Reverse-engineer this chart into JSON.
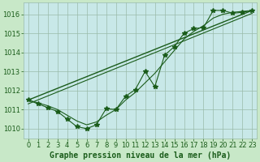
{
  "background_color": "#c8e8c8",
  "plot_bg_color": "#c8e8e8",
  "grid_color": "#99bbaa",
  "line_color": "#1a5c1a",
  "title": "Graphe pression niveau de la mer (hPa)",
  "tick_fontsize": 6,
  "title_fontsize": 7,
  "xlim": [
    -0.5,
    23.5
  ],
  "ylim": [
    1009.5,
    1016.6
  ],
  "yticks": [
    1010,
    1011,
    1012,
    1013,
    1014,
    1015,
    1016
  ],
  "xticks": [
    0,
    1,
    2,
    3,
    4,
    5,
    6,
    7,
    8,
    9,
    10,
    11,
    12,
    13,
    14,
    15,
    16,
    17,
    18,
    19,
    20,
    21,
    22,
    23
  ],
  "jagged_x": [
    0,
    1,
    2,
    3,
    4,
    5,
    6,
    7,
    8,
    9,
    10,
    11,
    12,
    13,
    14,
    15,
    16,
    17,
    18,
    19,
    20,
    21,
    22,
    23
  ],
  "jagged_y": [
    1011.5,
    1011.3,
    1011.1,
    1010.9,
    1010.5,
    1010.1,
    1010.0,
    1010.2,
    1011.05,
    1011.0,
    1011.7,
    1012.05,
    1013.0,
    1012.2,
    1013.85,
    1014.3,
    1015.0,
    1015.25,
    1015.3,
    1016.2,
    1016.2,
    1016.05,
    1016.1,
    1016.2
  ],
  "smooth_x": [
    0,
    1,
    2,
    3,
    4,
    5,
    6,
    7,
    8,
    9,
    10,
    11,
    12,
    13,
    14,
    15,
    16,
    17,
    18,
    19,
    20,
    21,
    22,
    23
  ],
  "smooth_y": [
    1011.5,
    1011.35,
    1011.2,
    1011.0,
    1010.7,
    1010.4,
    1010.2,
    1010.35,
    1010.7,
    1011.0,
    1011.5,
    1011.9,
    1012.4,
    1012.9,
    1013.5,
    1014.1,
    1014.7,
    1015.1,
    1015.4,
    1015.8,
    1016.0,
    1016.1,
    1016.15,
    1016.2
  ],
  "trend_x": [
    0,
    23
  ],
  "trend_y": [
    1011.5,
    1016.2
  ],
  "trend2_x": [
    0,
    23
  ],
  "trend2_y": [
    1011.3,
    1016.05
  ]
}
